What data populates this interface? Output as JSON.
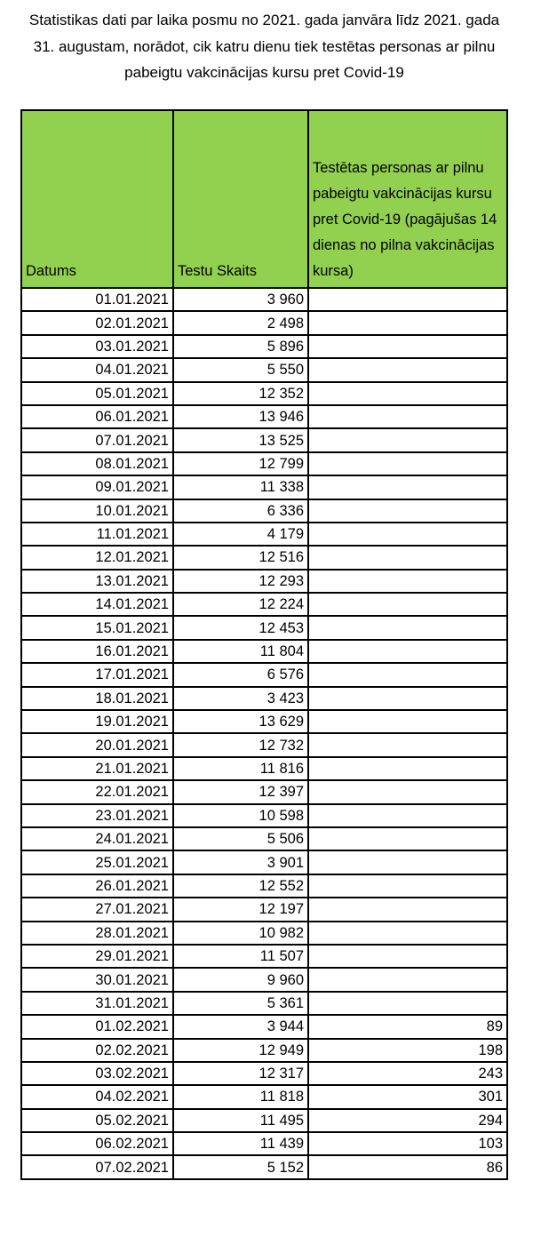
{
  "title": "Statistikas dati par laika posmu no 2021. gada janvāra līdz 2021. gada 31. augustam, norādot, cik katru dienu tiek testētas personas ar pilnu pabeigtu vakcinācijas kursu pret Covid-19",
  "colors": {
    "header_bg": "#92d050",
    "border": "#000000"
  },
  "table": {
    "headers": [
      "Datums",
      "Testu Skaits",
      "Testētas personas ar pilnu pabeigtu vakcinācijas kursu pret Covid-19 (pagājušas 14 dienas no pilna vakcinācijas kursa)"
    ],
    "rows": [
      [
        "01.01.2021",
        "3 960",
        ""
      ],
      [
        "02.01.2021",
        "2 498",
        ""
      ],
      [
        "03.01.2021",
        "5 896",
        ""
      ],
      [
        "04.01.2021",
        "5 550",
        ""
      ],
      [
        "05.01.2021",
        "12 352",
        ""
      ],
      [
        "06.01.2021",
        "13 946",
        ""
      ],
      [
        "07.01.2021",
        "13 525",
        ""
      ],
      [
        "08.01.2021",
        "12 799",
        ""
      ],
      [
        "09.01.2021",
        "11 338",
        ""
      ],
      [
        "10.01.2021",
        "6 336",
        ""
      ],
      [
        "11.01.2021",
        "4 179",
        ""
      ],
      [
        "12.01.2021",
        "12 516",
        ""
      ],
      [
        "13.01.2021",
        "12 293",
        ""
      ],
      [
        "14.01.2021",
        "12 224",
        ""
      ],
      [
        "15.01.2021",
        "12 453",
        ""
      ],
      [
        "16.01.2021",
        "11 804",
        ""
      ],
      [
        "17.01.2021",
        "6 576",
        ""
      ],
      [
        "18.01.2021",
        "3 423",
        ""
      ],
      [
        "19.01.2021",
        "13 629",
        ""
      ],
      [
        "20.01.2021",
        "12 732",
        ""
      ],
      [
        "21.01.2021",
        "11 816",
        ""
      ],
      [
        "22.01.2021",
        "12 397",
        ""
      ],
      [
        "23.01.2021",
        "10 598",
        ""
      ],
      [
        "24.01.2021",
        "5 506",
        ""
      ],
      [
        "25.01.2021",
        "3 901",
        ""
      ],
      [
        "26.01.2021",
        "12 552",
        ""
      ],
      [
        "27.01.2021",
        "12 197",
        ""
      ],
      [
        "28.01.2021",
        "10 982",
        ""
      ],
      [
        "29.01.2021",
        "11 507",
        ""
      ],
      [
        "30.01.2021",
        "9 960",
        ""
      ],
      [
        "31.01.2021",
        "5 361",
        ""
      ],
      [
        "01.02.2021",
        "3 944",
        "89"
      ],
      [
        "02.02.2021",
        "12 949",
        "198"
      ],
      [
        "03.02.2021",
        "12 317",
        "243"
      ],
      [
        "04.02.2021",
        "11 818",
        "301"
      ],
      [
        "05.02.2021",
        "11 495",
        "294"
      ],
      [
        "06.02.2021",
        "11 439",
        "103"
      ],
      [
        "07.02.2021",
        "5 152",
        "86"
      ]
    ]
  }
}
